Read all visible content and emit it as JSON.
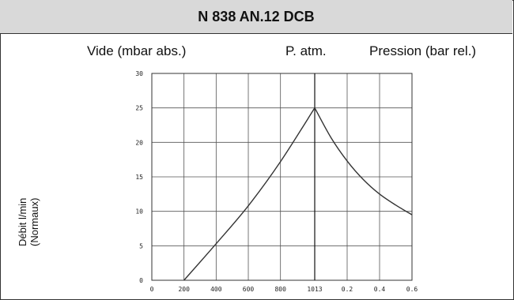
{
  "title": "N 838 AN.12 DCB",
  "headers": {
    "vacuum": "Vide (mbar abs.)",
    "atm": "P. atm.",
    "pressure": "Pression (bar rel.)"
  },
  "ylabel": {
    "line1": "Débit l/min",
    "line2": "(Normaux)"
  },
  "chart_data": {
    "type": "line",
    "title": "N 838 AN.12 DCB",
    "xlabel": "",
    "ylabel": "Débit l/min (Normaux)",
    "ylim": [
      0,
      30
    ],
    "yticks": [
      0,
      5,
      10,
      15,
      20,
      25,
      30
    ],
    "grid": true,
    "x_axis_segments": [
      {
        "label": "Vide (mbar abs.)",
        "range": [
          0,
          1013
        ],
        "ticks": [
          "0",
          "200",
          "400",
          "600",
          "800",
          "1013"
        ]
      },
      {
        "label": "Pression (bar rel.)",
        "range": [
          0,
          0.6
        ],
        "ticks": [
          "0.2",
          "0.4",
          "0.6"
        ]
      }
    ],
    "series": [
      {
        "name": "",
        "segment": "vacuum",
        "x": [
          200,
          400,
          600,
          800,
          1013
        ],
        "y": [
          0,
          5.3,
          10.8,
          17.2,
          25
        ]
      },
      {
        "name": "",
        "segment": "pressure",
        "x": [
          0,
          0.1,
          0.2,
          0.3,
          0.4,
          0.5,
          0.6
        ],
        "y": [
          25,
          20.7,
          17.3,
          14.6,
          12.5,
          10.9,
          9.5
        ]
      }
    ]
  }
}
